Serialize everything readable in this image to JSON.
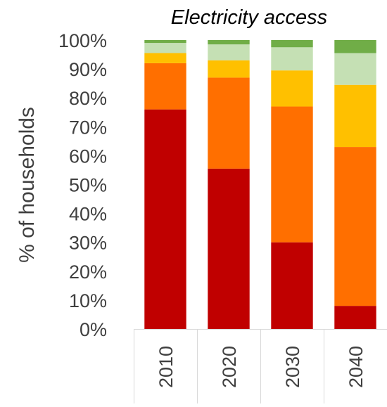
{
  "chart_data": {
    "type": "bar",
    "stacked": true,
    "title": "Electricity access",
    "xlabel": "",
    "ylabel": "% of households",
    "ylim": [
      0,
      100
    ],
    "yticks": [
      "0%",
      "10%",
      "20%",
      "30%",
      "40%",
      "50%",
      "60%",
      "70%",
      "80%",
      "90%",
      "100%"
    ],
    "categories": [
      "2010",
      "2020",
      "2030",
      "2040"
    ],
    "grid": false,
    "legend": "none",
    "series": [
      {
        "color": "#C00000",
        "values": [
          76,
          55.5,
          30,
          8
        ]
      },
      {
        "color": "#FF6F00",
        "values": [
          16,
          31.5,
          47,
          55
        ]
      },
      {
        "color": "#FFC000",
        "values": [
          3.5,
          6,
          12.5,
          21.5
        ]
      },
      {
        "color": "#C5E0B4",
        "values": [
          3.5,
          5.5,
          8,
          11
        ]
      },
      {
        "color": "#70AD47",
        "values": [
          1,
          1.5,
          2.5,
          4.5
        ]
      }
    ]
  }
}
